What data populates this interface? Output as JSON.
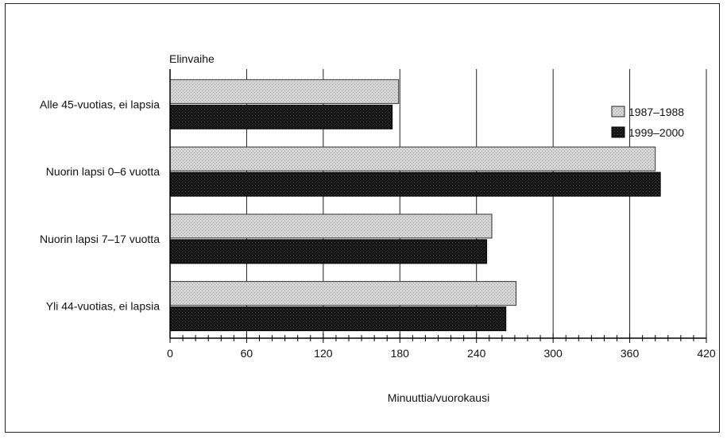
{
  "chart_data": {
    "type": "bar",
    "orientation": "horizontal",
    "title": "",
    "ylabel": "Elinvaihe",
    "xlabel": "Minuuttia/vuorokausi",
    "categories": [
      "Alle 45-vuotias, ei lapsia",
      "Nuorin lapsi 0–6 vuotta",
      "Nuorin lapsi 7–17 vuotta",
      "Yli 44-vuotias, ei lapsia"
    ],
    "series": [
      {
        "name": "1987–1988",
        "color": "#c8c8c8",
        "values": [
          179,
          380,
          252,
          271
        ]
      },
      {
        "name": "1999–2000",
        "color": "#111111",
        "values": [
          174,
          384,
          248,
          263
        ]
      }
    ],
    "xlim": [
      0,
      420
    ],
    "xticks": [
      0,
      60,
      120,
      180,
      240,
      300,
      360,
      420
    ],
    "minor_tick_step": 10,
    "grid": true,
    "legend_position": "top-right"
  }
}
